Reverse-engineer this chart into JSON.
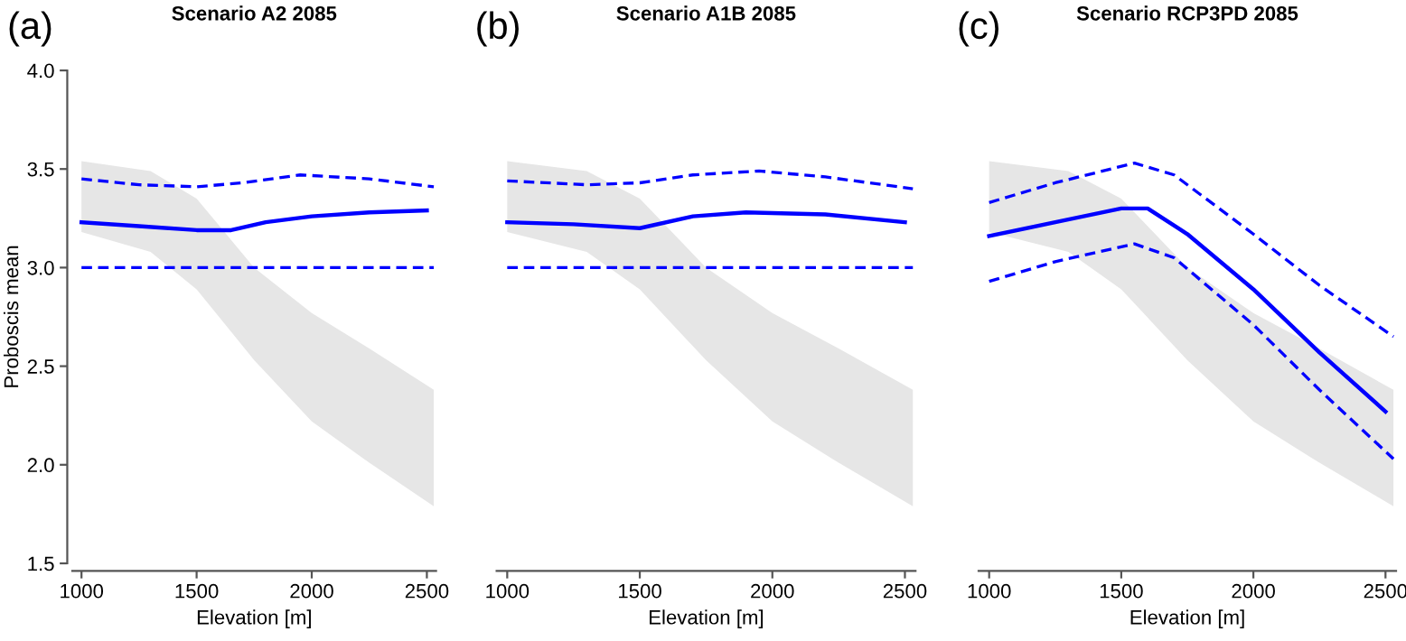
{
  "chart_data": [
    {
      "type": "line",
      "title": "Scenario A2 2085",
      "xlabel": "Elevation [m]",
      "ylabel": "Proboscis mean",
      "annotations": [
        "(a)"
      ],
      "xlim": [
        960,
        2540
      ],
      "ylim": [
        1.5,
        4.0
      ],
      "xticks": [
        1000,
        1500,
        2000,
        2500
      ],
      "yticks": [
        1.5,
        {
          "value": 2,
          "label": "2.0"
        },
        2.5,
        {
          "value": 3,
          "label": "3.0"
        },
        3.5,
        {
          "value": 4,
          "label": "4.0"
        }
      ],
      "grid": false,
      "legend": false,
      "series": [
        {
          "color": "#e6e6e6",
          "x": [
            1000,
            1300,
            1500,
            1750,
            2000,
            2250,
            2530
          ],
          "values": [
            null,
            null,
            null,
            null,
            null,
            null,
            null
          ],
          "lower": [
            3.18,
            3.08,
            2.89,
            2.53,
            2.22,
            2.01,
            1.79
          ],
          "upper": [
            3.54,
            3.49,
            3.35,
            3.0,
            2.77,
            2.59,
            2.38
          ]
        },
        {
          "type": "line",
          "color": "#0000ff",
          "line_style": "solid",
          "x": [
            1000,
            1250,
            1500,
            1650,
            1800,
            2000,
            2250,
            2500
          ],
          "values": [
            3.23,
            3.21,
            3.19,
            3.19,
            3.23,
            3.26,
            3.28,
            3.29
          ]
        },
        {
          "type": "line",
          "color": "#0000ff",
          "line_style": "dashed",
          "x": [
            1000,
            1250,
            1500,
            1700,
            1950,
            2250,
            2530
          ],
          "values": [
            3.45,
            3.42,
            3.41,
            3.43,
            3.47,
            3.45,
            3.41
          ]
        },
        {
          "type": "line",
          "color": "#0000ff",
          "line_style": "dashed",
          "x": [
            1000,
            2530
          ],
          "values": [
            3.0,
            3.0
          ]
        }
      ]
    },
    {
      "type": "line",
      "title": "Scenario A1B 2085",
      "xlabel": "Elevation [m]",
      "annotations": [
        "(b)"
      ],
      "xlim": [
        960,
        2540
      ],
      "ylim": [
        1.5,
        4.0
      ],
      "xticks": [
        1000,
        1500,
        2000,
        2500
      ],
      "tick_labels": "x",
      "grid": false,
      "legend": false,
      "series": [
        {
          "color": "#e6e6e6",
          "x": [
            1000,
            1300,
            1500,
            1750,
            2000,
            2250,
            2530
          ],
          "values": [
            null,
            null,
            null,
            null,
            null,
            null,
            null
          ],
          "lower": [
            3.18,
            3.08,
            2.89,
            2.53,
            2.22,
            2.01,
            1.79
          ],
          "upper": [
            3.54,
            3.49,
            3.35,
            3.0,
            2.77,
            2.59,
            2.38
          ]
        },
        {
          "type": "line",
          "color": "#0000ff",
          "line_style": "solid",
          "x": [
            1000,
            1250,
            1500,
            1700,
            1900,
            2200,
            2500
          ],
          "values": [
            3.23,
            3.22,
            3.2,
            3.26,
            3.28,
            3.27,
            3.23
          ]
        },
        {
          "type": "line",
          "color": "#0000ff",
          "line_style": "dashed",
          "x": [
            1000,
            1300,
            1500,
            1700,
            1950,
            2200,
            2530
          ],
          "values": [
            3.44,
            3.42,
            3.43,
            3.47,
            3.49,
            3.46,
            3.4
          ]
        },
        {
          "type": "line",
          "color": "#0000ff",
          "line_style": "dashed",
          "x": [
            1000,
            2530
          ],
          "values": [
            3.0,
            3.0
          ]
        }
      ]
    },
    {
      "type": "line",
      "title": "Scenario RCP3PD 2085",
      "xlabel": "Elevation [m]",
      "annotations": [
        "(c)"
      ],
      "xlim": [
        960,
        2540
      ],
      "ylim": [
        1.5,
        4.0
      ],
      "xticks": [
        1000,
        1500,
        2000,
        2500
      ],
      "tick_labels": "x",
      "grid": false,
      "legend": false,
      "series": [
        {
          "color": "#e6e6e6",
          "x": [
            1000,
            1300,
            1500,
            1750,
            2000,
            2250,
            2530
          ],
          "values": [
            null,
            null,
            null,
            null,
            null,
            null,
            null
          ],
          "lower": [
            3.18,
            3.08,
            2.89,
            2.53,
            2.22,
            2.01,
            1.79
          ],
          "upper": [
            3.54,
            3.49,
            3.35,
            3.0,
            2.77,
            2.59,
            2.38
          ]
        },
        {
          "type": "line",
          "color": "#0000ff",
          "line_style": "solid",
          "x": [
            1000,
            1250,
            1500,
            1600,
            1750,
            2000,
            2250,
            2500
          ],
          "values": [
            3.16,
            3.23,
            3.3,
            3.3,
            3.17,
            2.89,
            2.57,
            2.27
          ]
        },
        {
          "type": "line",
          "color": "#0000ff",
          "line_style": "dashed",
          "x": [
            1000,
            1250,
            1550,
            1700,
            2000,
            2250,
            2530
          ],
          "values": [
            3.33,
            3.43,
            3.53,
            3.47,
            3.17,
            2.91,
            2.65
          ]
        },
        {
          "type": "line",
          "color": "#0000ff",
          "line_style": "dashed",
          "x": [
            1000,
            1250,
            1550,
            1700,
            2000,
            2250,
            2530
          ],
          "values": [
            2.93,
            3.03,
            3.12,
            3.05,
            2.71,
            2.38,
            2.03
          ]
        }
      ]
    }
  ]
}
